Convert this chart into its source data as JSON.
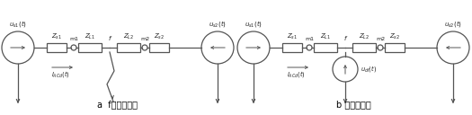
{
  "fig_width": 5.25,
  "fig_height": 1.28,
  "dpi": 100,
  "bg_color": "#ffffff",
  "line_color": "#555555",
  "text_color": "#222222",
  "caption_a": "a  f点短路故障",
  "caption_b": "b 等值电路图",
  "diagram_a": {
    "label_us1": "$u_{s1}(t)$",
    "label_us2": "$u_{s2}(t)$",
    "label_Zs1": "$Z_{s1}$",
    "label_ZL1": "$Z_{L1}$",
    "label_ZL2": "$Z_{L2}$",
    "label_Zs2": "$Z_{s2}$",
    "label_m1": "m1",
    "label_m2": "m2",
    "label_f": "f",
    "label_IACd": "$I_{ACd}(t)$",
    "has_fault": true,
    "has_current_source": false
  },
  "diagram_b": {
    "label_us1": "$u_{s1}(t)$",
    "label_us2": "$u_{s2}(t)$",
    "label_Zs1": "$Z_{s1}$",
    "label_ZL1": "$Z_{L1}$",
    "label_ZL2": "$Z_{L2}$",
    "label_Zs2": "$Z_{s2}$",
    "label_m1": "m1",
    "label_m2": "m2",
    "label_f": "f",
    "label_IACd": "$I_{ACd}(t)$",
    "label_udf": "$u_{df}(t)$",
    "has_fault": false,
    "has_current_source": true
  }
}
